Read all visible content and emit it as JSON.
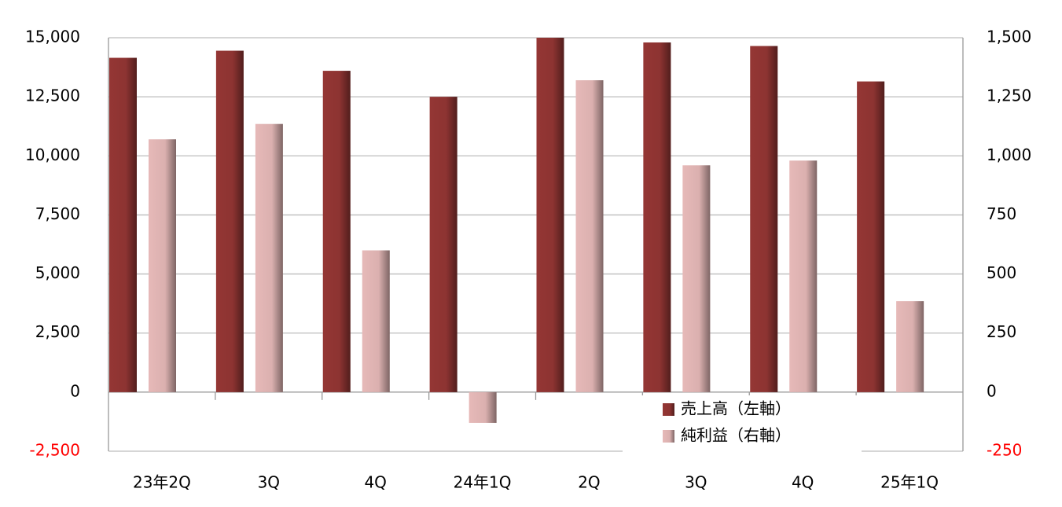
{
  "chart_data": {
    "type": "bar",
    "categories": [
      "23年2Q",
      "3Q",
      "4Q",
      "24年1Q",
      "2Q",
      "3Q",
      "4Q",
      "25年1Q"
    ],
    "series": [
      {
        "name": "売上高（左軸）",
        "color": "#943634",
        "values": [
          14150,
          14450,
          13600,
          12500,
          15000,
          14800,
          14650,
          13150
        ]
      },
      {
        "name": "純利益（右軸）",
        "color": "#e6b9b8",
        "axis": "y2",
        "values": [
          1070,
          1135,
          600,
          -130,
          1320,
          960,
          980,
          385
        ]
      }
    ],
    "ylim": [
      -2500,
      15000
    ],
    "yticks": [
      {
        "value": -2500,
        "label": "-2,500"
      },
      0,
      {
        "value": 2500,
        "label": "2,500"
      },
      {
        "value": 5000,
        "label": "5,000"
      },
      {
        "value": 7500,
        "label": "7,500"
      },
      {
        "value": 10000,
        "label": "10,000"
      },
      {
        "value": 12500,
        "label": "12,500"
      },
      {
        "value": 15000,
        "label": "15,000"
      }
    ],
    "y2lim": [
      -250,
      1500
    ],
    "y2ticks": [
      -250,
      0,
      250,
      500,
      750,
      {
        "value": 1000,
        "label": "1,000"
      },
      {
        "value": 1250,
        "label": "1,250"
      },
      {
        "value": 1500,
        "label": "1,500"
      }
    ],
    "negative_tick_color": "#ff0000",
    "grid": true,
    "legend": "lower-right"
  }
}
